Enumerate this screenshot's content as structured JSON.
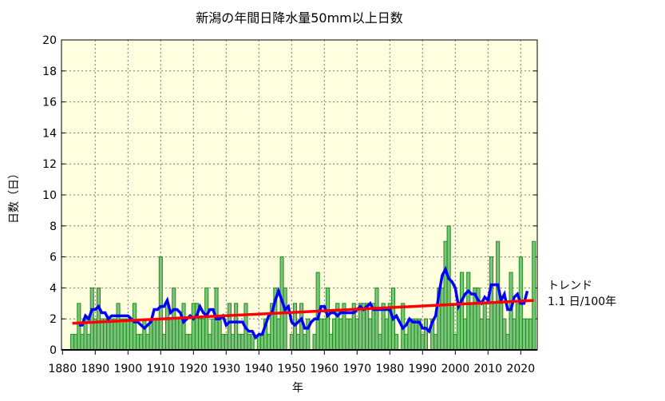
{
  "chart_data": {
    "type": "bar",
    "title": "新潟の年間日降水量50mm以上日数",
    "xlabel": "年",
    "ylabel": "日数（日）",
    "xlim": [
      1880,
      2025
    ],
    "ylim": [
      0,
      20
    ],
    "xticks": [
      1880,
      1890,
      1900,
      1910,
      1920,
      1930,
      1940,
      1950,
      1960,
      1970,
      1980,
      1990,
      2000,
      2010,
      2020
    ],
    "yticks": [
      0,
      2,
      4,
      6,
      8,
      10,
      12,
      14,
      16,
      18,
      20
    ],
    "grid": true,
    "start_year": 1883,
    "values": [
      1,
      1,
      3,
      1,
      2,
      1,
      4,
      2,
      4,
      2,
      2,
      2,
      2,
      2,
      3,
      2,
      2,
      2,
      2,
      3,
      1,
      1,
      2,
      1,
      2,
      2,
      2,
      6,
      1,
      3,
      2,
      4,
      2,
      2,
      3,
      1,
      1,
      3,
      3,
      2,
      2,
      4,
      1,
      2,
      4,
      2,
      1,
      1,
      3,
      1,
      3,
      1,
      1,
      3,
      1,
      1,
      0,
      1,
      1,
      2,
      1,
      3,
      4,
      2,
      6,
      4,
      0,
      1,
      3,
      1,
      3,
      1,
      2,
      0,
      1,
      5,
      2,
      2,
      4,
      1,
      2,
      3,
      2,
      3,
      2,
      2,
      3,
      2,
      3,
      3,
      3,
      2,
      3,
      4,
      1,
      3,
      2,
      3,
      4,
      1,
      0,
      3,
      1,
      2,
      2,
      2,
      2,
      1,
      2,
      0,
      2,
      1,
      4,
      4,
      7,
      8,
      3,
      1,
      3,
      5,
      2,
      5,
      3,
      4,
      4,
      2,
      3,
      2,
      6,
      3,
      7,
      3,
      2,
      1,
      5,
      2,
      3,
      6,
      2,
      2,
      2,
      7
    ],
    "moving_average_window": 5,
    "trend_label": "トレンド",
    "trend_value": "1.1 日/100年",
    "colors": {
      "background": "#ffffe0",
      "bar_fill": "#7cc47c",
      "bar_edge": "#1e8c1e",
      "moving_average": "#0000ff",
      "trend": "#ff0000"
    }
  }
}
